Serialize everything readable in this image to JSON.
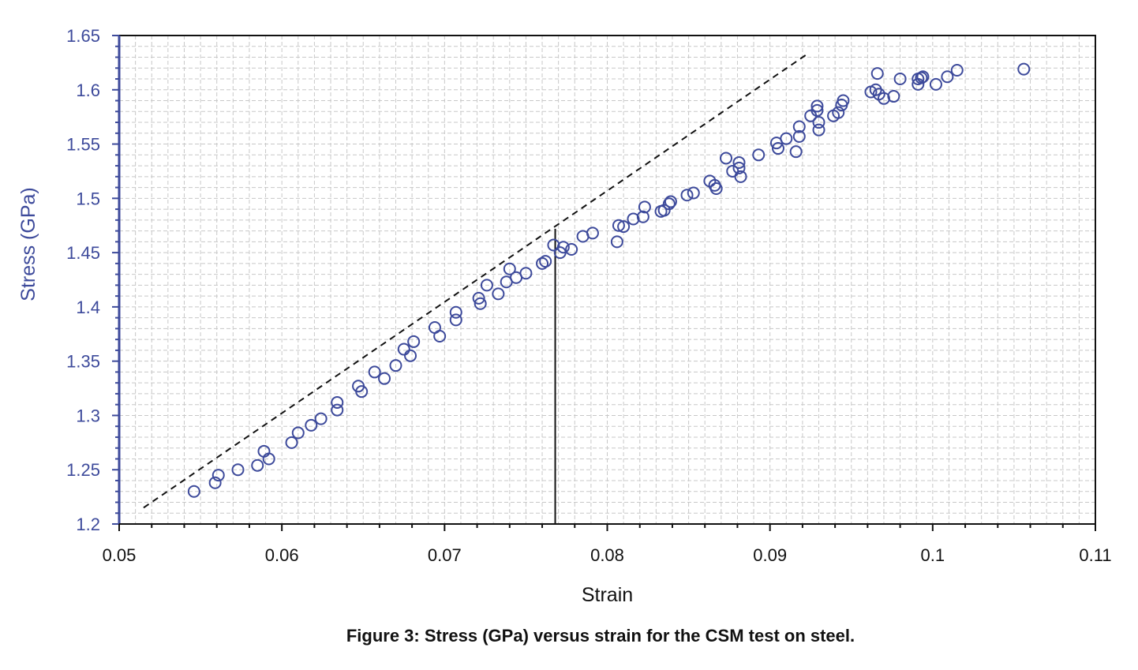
{
  "caption": "Figure 3: Stress (GPa) versus strain for the CSM test on steel.",
  "chart_data": {
    "type": "scatter",
    "xlabel": "Strain",
    "ylabel": "Stress (GPa)",
    "xlim": [
      0.05,
      0.11
    ],
    "ylim": [
      1.2,
      1.65
    ],
    "xticks": [
      "0.05",
      "0.06",
      "0.07",
      "0.08",
      "0.09",
      "0.1",
      "0.11"
    ],
    "yticks": [
      "1.2",
      "1.25",
      "1.3",
      "1.35",
      "1.4",
      "1.45",
      "1.5",
      "1.55",
      "1.6",
      "1.65"
    ],
    "grid": true,
    "marker_color": "#3d4a9b",
    "series": [
      {
        "marker": "open-circle",
        "points": [
          [
            0.0546,
            1.23
          ],
          [
            0.0559,
            1.238
          ],
          [
            0.0561,
            1.245
          ],
          [
            0.0573,
            1.25
          ],
          [
            0.0585,
            1.254
          ],
          [
            0.0589,
            1.267
          ],
          [
            0.0592,
            1.26
          ],
          [
            0.0606,
            1.275
          ],
          [
            0.061,
            1.284
          ],
          [
            0.0618,
            1.291
          ],
          [
            0.0624,
            1.297
          ],
          [
            0.0634,
            1.305
          ],
          [
            0.0634,
            1.312
          ],
          [
            0.0647,
            1.327
          ],
          [
            0.0649,
            1.322
          ],
          [
            0.0657,
            1.34
          ],
          [
            0.0663,
            1.334
          ],
          [
            0.067,
            1.346
          ],
          [
            0.0675,
            1.361
          ],
          [
            0.0679,
            1.355
          ],
          [
            0.0681,
            1.368
          ],
          [
            0.0694,
            1.381
          ],
          [
            0.0697,
            1.373
          ],
          [
            0.0707,
            1.395
          ],
          [
            0.0707,
            1.388
          ],
          [
            0.0721,
            1.408
          ],
          [
            0.0722,
            1.403
          ],
          [
            0.0726,
            1.42
          ],
          [
            0.0733,
            1.412
          ],
          [
            0.0738,
            1.423
          ],
          [
            0.074,
            1.435
          ],
          [
            0.0744,
            1.427
          ],
          [
            0.075,
            1.431
          ],
          [
            0.076,
            1.44
          ],
          [
            0.0762,
            1.442
          ],
          [
            0.0767,
            1.457
          ],
          [
            0.0771,
            1.45
          ],
          [
            0.0773,
            1.455
          ],
          [
            0.0778,
            1.453
          ],
          [
            0.0785,
            1.465
          ],
          [
            0.0791,
            1.468
          ],
          [
            0.0806,
            1.46
          ],
          [
            0.0807,
            1.475
          ],
          [
            0.081,
            1.474
          ],
          [
            0.0816,
            1.481
          ],
          [
            0.0822,
            1.483
          ],
          [
            0.0823,
            1.492
          ],
          [
            0.0833,
            1.488
          ],
          [
            0.0835,
            1.489
          ],
          [
            0.0838,
            1.495
          ],
          [
            0.0839,
            1.497
          ],
          [
            0.0849,
            1.503
          ],
          [
            0.0853,
            1.505
          ],
          [
            0.0863,
            1.516
          ],
          [
            0.0866,
            1.512
          ],
          [
            0.0867,
            1.509
          ],
          [
            0.0873,
            1.537
          ],
          [
            0.0877,
            1.525
          ],
          [
            0.0881,
            1.533
          ],
          [
            0.0881,
            1.528
          ],
          [
            0.0882,
            1.52
          ],
          [
            0.0893,
            1.54
          ],
          [
            0.0904,
            1.551
          ],
          [
            0.0905,
            1.546
          ],
          [
            0.091,
            1.555
          ],
          [
            0.0916,
            1.543
          ],
          [
            0.0918,
            1.566
          ],
          [
            0.0918,
            1.557
          ],
          [
            0.0925,
            1.576
          ],
          [
            0.0929,
            1.585
          ],
          [
            0.0929,
            1.581
          ],
          [
            0.093,
            1.57
          ],
          [
            0.093,
            1.563
          ],
          [
            0.0939,
            1.576
          ],
          [
            0.0942,
            1.579
          ],
          [
            0.0944,
            1.586
          ],
          [
            0.0945,
            1.59
          ],
          [
            0.0962,
            1.598
          ],
          [
            0.0965,
            1.6
          ],
          [
            0.0966,
            1.615
          ],
          [
            0.0967,
            1.596
          ],
          [
            0.097,
            1.592
          ],
          [
            0.0976,
            1.594
          ],
          [
            0.098,
            1.61
          ],
          [
            0.0991,
            1.61
          ],
          [
            0.0991,
            1.605
          ],
          [
            0.0993,
            1.611
          ],
          [
            0.0994,
            1.612
          ],
          [
            0.1002,
            1.605
          ],
          [
            0.1009,
            1.612
          ],
          [
            0.1015,
            1.618
          ],
          [
            0.1056,
            1.619
          ]
        ]
      }
    ],
    "reference_lines": [
      {
        "style": "dashed",
        "points": [
          [
            0.0515,
            1.215
          ],
          [
            0.0922,
            1.632
          ]
        ]
      },
      {
        "style": "solid",
        "points": [
          [
            0.0768,
            1.2
          ],
          [
            0.0768,
            1.472
          ]
        ]
      }
    ]
  }
}
